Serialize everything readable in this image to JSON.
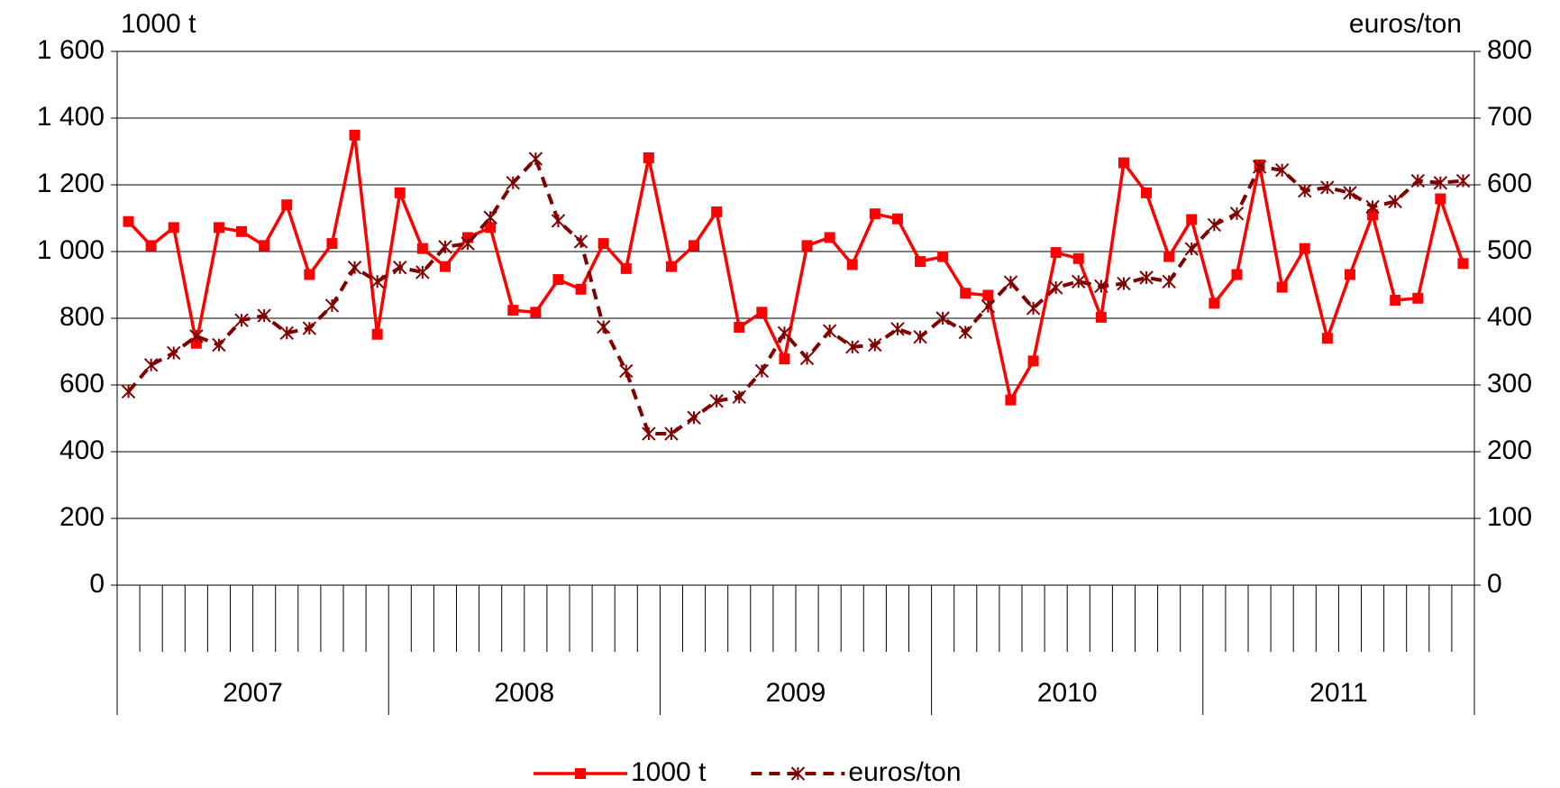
{
  "chart_data": {
    "type": "line",
    "y_label": "1000 t",
    "y2_label": "euros/ton",
    "categories": [
      null,
      null,
      null,
      null,
      null,
      null,
      null,
      null,
      null,
      null,
      null,
      null,
      null,
      null,
      null,
      null,
      null,
      null,
      null,
      null,
      null,
      null,
      null,
      null,
      null,
      null,
      null,
      null,
      null,
      null,
      null,
      null,
      null,
      null,
      null,
      null,
      null,
      null,
      null,
      null,
      null,
      null,
      null,
      null,
      null,
      null,
      null,
      null,
      null,
      null,
      null,
      null,
      null,
      null,
      null,
      null,
      null,
      null,
      null,
      null
    ],
    "groups": [
      "2007",
      "2008",
      "2009",
      "2010",
      "2011"
    ],
    "series": [
      {
        "name": "1000 t",
        "color": "#ff0000",
        "marker": "square",
        "dash": false,
        "values": [
          1090,
          1018,
          1072,
          725,
          1072,
          1060,
          1018,
          1140,
          931,
          1024,
          1349,
          752,
          1176,
          1009,
          955,
          1042,
          1072,
          824,
          818,
          916,
          887,
          1024,
          949,
          1281,
          955,
          1018,
          1119,
          773,
          818,
          678,
          1018,
          1042,
          961,
          1113,
          1098,
          970,
          985,
          875,
          869,
          555,
          672,
          997,
          979,
          803,
          1266,
          1176,
          985,
          1096,
          845,
          931,
          1260,
          893,
          1009,
          740,
          931,
          1110,
          854,
          860,
          1158,
          964
        ]
      },
      {
        "name": "euros/ton",
        "color": "#800000",
        "marker": "asterisk",
        "dash": true,
        "axis": "y2",
        "values": [
          290,
          330,
          348,
          373,
          360,
          397,
          404,
          378,
          385,
          419,
          476,
          455,
          476,
          469,
          507,
          512,
          551,
          603,
          639,
          546,
          515,
          387,
          321,
          227,
          227,
          251,
          276,
          282,
          321,
          378,
          340,
          381,
          357,
          360,
          384,
          372,
          400,
          379,
          418,
          454,
          415,
          446,
          455,
          448,
          452,
          461,
          455,
          504,
          540,
          557,
          627,
          622,
          591,
          596,
          588,
          567,
          575,
          606,
          603,
          606
        ]
      }
    ],
    "ylim": [
      0,
      1600
    ],
    "yticks": [
      0,
      200,
      400,
      600,
      800,
      {
        "value": 1000,
        "label": "1 000"
      },
      {
        "value": 1200,
        "label": "1 200"
      },
      {
        "value": 1400,
        "label": "1 400"
      },
      {
        "value": 1600,
        "label": "1 600"
      }
    ],
    "y2lim": [
      0,
      800
    ],
    "y2ticks": [
      0,
      100,
      200,
      300,
      400,
      500,
      600,
      700,
      800
    ],
    "grid": true,
    "legend": "bottom"
  }
}
